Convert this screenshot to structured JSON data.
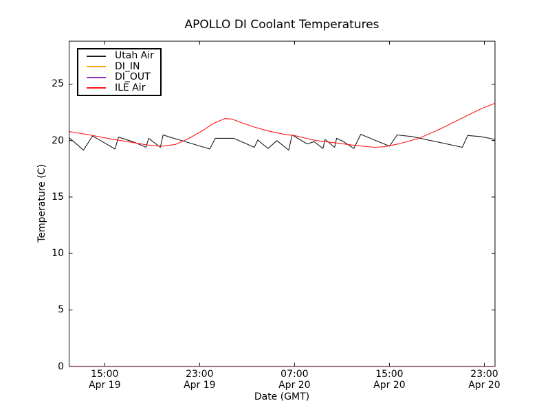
{
  "chart_data": {
    "type": "line",
    "title": "APOLLO DI Coolant Temperatures",
    "xlabel": "Date (GMT)",
    "ylabel": "Temperature (C)",
    "x_unit_hours_from": "Apr 19 12:00 GMT",
    "xlim": [
      0,
      35.9
    ],
    "ylim": [
      0,
      28.8
    ],
    "grid": false,
    "legend_position": "upper left",
    "y_ticks": [
      0,
      5,
      10,
      15,
      20,
      25
    ],
    "x_ticks": [
      {
        "h": 3,
        "time": "15:00",
        "date": "Apr 19"
      },
      {
        "h": 11,
        "time": "23:00",
        "date": "Apr 19"
      },
      {
        "h": 19,
        "time": "07:00",
        "date": "Apr 20"
      },
      {
        "h": 27,
        "time": "15:00",
        "date": "Apr 20"
      },
      {
        "h": 35,
        "time": "23:00",
        "date": "Apr 20"
      }
    ],
    "series": [
      {
        "name": "Utah Air",
        "color": "#1a1a1a",
        "points": [
          [
            0,
            20.25
          ],
          [
            0.4,
            19.9
          ],
          [
            1.21,
            19.15
          ],
          [
            1.97,
            20.4
          ],
          [
            2.4,
            20.15
          ],
          [
            3.87,
            19.25
          ],
          [
            4.16,
            20.3
          ],
          [
            5.38,
            19.9
          ],
          [
            6.48,
            19.4
          ],
          [
            6.71,
            20.2
          ],
          [
            7.69,
            19.4
          ],
          [
            7.92,
            20.5
          ],
          [
            8.5,
            20.3
          ],
          [
            11.86,
            19.25
          ],
          [
            12.32,
            20.2
          ],
          [
            13.88,
            20.2
          ],
          [
            15.61,
            19.4
          ],
          [
            15.9,
            20.05
          ],
          [
            16.77,
            19.3
          ],
          [
            17.52,
            20.0
          ],
          [
            18.51,
            19.15
          ],
          [
            18.8,
            20.5
          ],
          [
            20.07,
            19.7
          ],
          [
            20.65,
            19.9
          ],
          [
            21.4,
            19.3
          ],
          [
            21.57,
            20.1
          ],
          [
            22.38,
            19.4
          ],
          [
            22.55,
            20.2
          ],
          [
            23.13,
            19.9
          ],
          [
            24.0,
            19.3
          ],
          [
            24.58,
            20.55
          ],
          [
            27.01,
            19.5
          ],
          [
            27.64,
            20.5
          ],
          [
            28.92,
            20.35
          ],
          [
            33.14,
            19.4
          ],
          [
            33.6,
            20.45
          ],
          [
            34.7,
            20.35
          ],
          [
            35.9,
            20.1
          ]
        ]
      },
      {
        "name": "DI_IN",
        "color": "#ffa500",
        "points": [
          [
            0,
            0
          ],
          [
            35.9,
            0
          ]
        ]
      },
      {
        "name": "DI_OUT",
        "color": "#9932cc",
        "points": [
          [
            0,
            0
          ],
          [
            35.9,
            0
          ]
        ]
      },
      {
        "name": "ILE Air",
        "color": "#ff1414",
        "points": [
          [
            0,
            20.8
          ],
          [
            1.73,
            20.5
          ],
          [
            3.47,
            20.15
          ],
          [
            5.2,
            19.85
          ],
          [
            6.65,
            19.6
          ],
          [
            7.8,
            19.5
          ],
          [
            8.96,
            19.65
          ],
          [
            10.12,
            20.2
          ],
          [
            11.28,
            20.9
          ],
          [
            12.14,
            21.5
          ],
          [
            13.13,
            21.95
          ],
          [
            13.76,
            21.9
          ],
          [
            14.46,
            21.6
          ],
          [
            15.61,
            21.2
          ],
          [
            16.77,
            20.85
          ],
          [
            18.1,
            20.55
          ],
          [
            18.97,
            20.45
          ],
          [
            19.95,
            20.2
          ],
          [
            20.82,
            20.0
          ],
          [
            21.98,
            19.85
          ],
          [
            23.13,
            19.7
          ],
          [
            24.29,
            19.55
          ],
          [
            25.73,
            19.4
          ],
          [
            26.6,
            19.45
          ],
          [
            27.76,
            19.7
          ],
          [
            29.5,
            20.2
          ],
          [
            31.23,
            21.0
          ],
          [
            32.96,
            21.9
          ],
          [
            34.7,
            22.8
          ],
          [
            35.9,
            23.3
          ]
        ]
      }
    ]
  }
}
